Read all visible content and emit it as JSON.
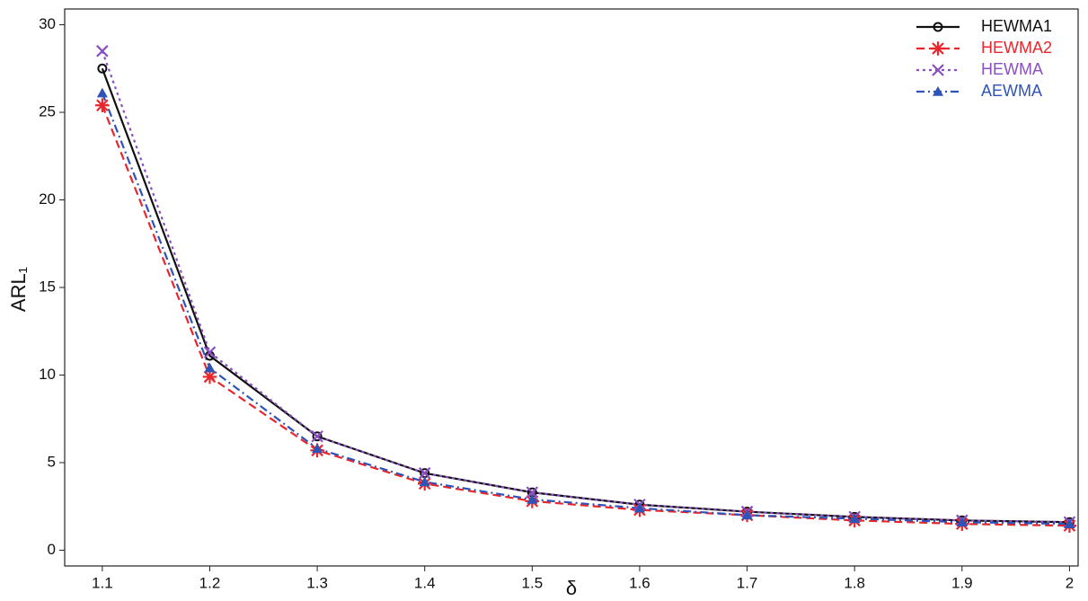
{
  "chart_data": {
    "type": "line",
    "x_label": "δ",
    "y_label": "ARL₁",
    "x": [
      1.1,
      1.2,
      1.3,
      1.4,
      1.5,
      1.6,
      1.7,
      1.8,
      1.9,
      2
    ],
    "series": [
      {
        "name": "HEWMA1",
        "color": "#111111",
        "dash": "solid",
        "marker": "circle",
        "values": [
          27.5,
          11.1,
          6.5,
          4.4,
          3.3,
          2.6,
          2.2,
          1.9,
          1.7,
          1.6
        ]
      },
      {
        "name": "HEWMA2",
        "color": "#e8262b",
        "dash": "dashed",
        "marker": "asterisk",
        "values": [
          25.4,
          9.9,
          5.7,
          3.8,
          2.8,
          2.3,
          2.0,
          1.7,
          1.5,
          1.4
        ]
      },
      {
        "name": "HEWMA",
        "color": "#8a4fc1",
        "dash": "dotted",
        "marker": "cross",
        "values": [
          28.5,
          11.3,
          6.5,
          4.4,
          3.3,
          2.6,
          2.2,
          1.9,
          1.7,
          1.6
        ]
      },
      {
        "name": "AEWMA",
        "color": "#2e54b8",
        "dash": "dashdot",
        "marker": "triangle",
        "values": [
          26.1,
          10.4,
          5.8,
          3.9,
          2.9,
          2.4,
          2.0,
          1.8,
          1.6,
          1.5
        ]
      }
    ],
    "xlim": [
      1.065,
      2.008
    ],
    "ylim": [
      -0.9,
      30.9
    ],
    "xticks": [
      1.1,
      1.2,
      1.3,
      1.4,
      1.5,
      1.6,
      1.7,
      1.8,
      1.9,
      2
    ],
    "yticks": [
      0,
      5,
      10,
      15,
      20,
      25,
      30
    ],
    "grid": false,
    "legend": "top-right"
  }
}
